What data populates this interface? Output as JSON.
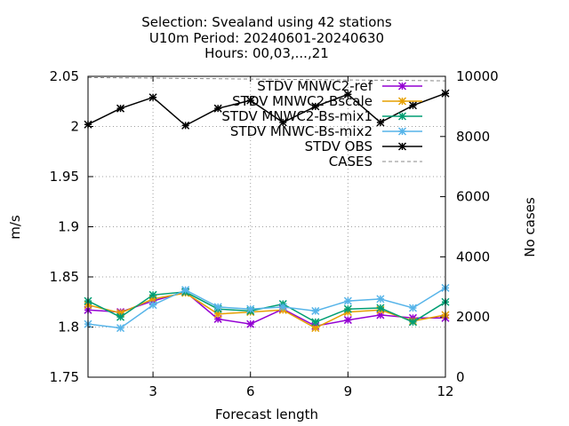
{
  "chart_data": {
    "type": "line",
    "title_lines": [
      "Selection: Svealand using    42 stations",
      "U10m   Period: 20240601-20240630",
      "Hours: 00,03,...,21"
    ],
    "xlabel": "Forecast length",
    "ylabel": "m/s",
    "y2label": "No cases",
    "xlim": [
      1,
      12
    ],
    "ylim": [
      1.75,
      2.05
    ],
    "y2lim": [
      0,
      10000
    ],
    "xticks": [
      3,
      6,
      9,
      12
    ],
    "yticks": [
      1.75,
      1.8,
      1.85,
      1.9,
      1.95,
      2,
      2.05
    ],
    "ytick_labels": [
      "1.75",
      "1.8",
      "1.85",
      "1.9",
      "1.95",
      "2",
      "2.05"
    ],
    "y2ticks": [
      0,
      2000,
      4000,
      6000,
      8000,
      10000
    ],
    "grid": true,
    "legend_position": "top-right",
    "x": [
      1,
      2,
      3,
      4,
      5,
      6,
      7,
      8,
      9,
      10,
      11,
      12
    ],
    "series": [
      {
        "name": "STDV MNWC2-ref",
        "color": "#9400d3",
        "axis": "y",
        "values": [
          1.817,
          1.815,
          1.826,
          1.835,
          1.808,
          1.803,
          1.818,
          1.801,
          1.807,
          1.812,
          1.809,
          1.809
        ]
      },
      {
        "name": "STDV MNWC2-Bscale",
        "color": "#e69f00",
        "axis": "y",
        "values": [
          1.822,
          1.814,
          1.828,
          1.834,
          1.813,
          1.815,
          1.817,
          1.799,
          1.815,
          1.817,
          1.806,
          1.812
        ]
      },
      {
        "name": "STDV MNWC2-Bs-mix1",
        "color": "#009e73",
        "axis": "y",
        "values": [
          1.826,
          1.81,
          1.832,
          1.835,
          1.818,
          1.816,
          1.823,
          1.805,
          1.818,
          1.819,
          1.805,
          1.825
        ]
      },
      {
        "name": "STDV MNWC-Bs-mix2",
        "color": "#56b4e9",
        "axis": "y",
        "values": [
          1.803,
          1.799,
          1.822,
          1.837,
          1.82,
          1.818,
          1.82,
          1.816,
          1.826,
          1.828,
          1.819,
          1.839
        ]
      },
      {
        "name": "STDV OBS",
        "color": "#000000",
        "axis": "y",
        "values": [
          2.002,
          2.018,
          2.029,
          2.001,
          2.018,
          2.026,
          2.004,
          2.02,
          2.032,
          2.004,
          2.021,
          2.033
        ]
      },
      {
        "name": "CASES",
        "color": "#888888",
        "axis": "y2",
        "dashed": true,
        "values": [
          9960,
          9950,
          9940,
          9930,
          9920,
          9910,
          9900,
          9890,
          9880,
          9870,
          9860,
          9850
        ]
      }
    ]
  }
}
